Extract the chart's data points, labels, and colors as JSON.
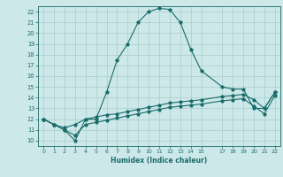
{
  "xlabel": "Humidex (Indice chaleur)",
  "bg_color": "#cce8e8",
  "grid_color": "#aacccc",
  "line_color": "#1a6b6b",
  "xlim": [
    -0.5,
    22.5
  ],
  "ylim": [
    9.5,
    22.5
  ],
  "xticks": [
    0,
    1,
    2,
    3,
    4,
    5,
    6,
    7,
    8,
    9,
    10,
    11,
    12,
    13,
    14,
    15,
    17,
    18,
    19,
    20,
    21,
    22
  ],
  "yticks": [
    10,
    11,
    12,
    13,
    14,
    15,
    16,
    17,
    18,
    19,
    20,
    21,
    22
  ],
  "series1_x": [
    0,
    1,
    2,
    3,
    4,
    5,
    6,
    7,
    8,
    9,
    10,
    11,
    12,
    13,
    14,
    15,
    17,
    18,
    19,
    20,
    21,
    22
  ],
  "series1_y": [
    12.0,
    11.5,
    11.0,
    10.0,
    12.0,
    12.0,
    14.5,
    17.5,
    19.0,
    21.0,
    22.0,
    22.3,
    22.2,
    21.0,
    18.5,
    16.5,
    15.0,
    14.8,
    14.8,
    13.0,
    13.0,
    14.5
  ],
  "series2_x": [
    0,
    1,
    2,
    3,
    4,
    5,
    6,
    7,
    8,
    9,
    10,
    11,
    12,
    13,
    14,
    15,
    17,
    18,
    19,
    20,
    21,
    22
  ],
  "series2_y": [
    12.0,
    11.5,
    11.2,
    11.5,
    12.0,
    12.2,
    12.4,
    12.5,
    12.7,
    12.9,
    13.1,
    13.3,
    13.5,
    13.6,
    13.7,
    13.8,
    14.1,
    14.2,
    14.3,
    13.8,
    13.0,
    14.5
  ],
  "series3_x": [
    0,
    1,
    2,
    3,
    4,
    5,
    6,
    7,
    8,
    9,
    10,
    11,
    12,
    13,
    14,
    15,
    17,
    18,
    19,
    20,
    21,
    22
  ],
  "series3_y": [
    12.0,
    11.5,
    11.0,
    10.5,
    11.5,
    11.7,
    11.9,
    12.1,
    12.3,
    12.5,
    12.7,
    12.9,
    13.1,
    13.2,
    13.3,
    13.4,
    13.7,
    13.8,
    13.9,
    13.2,
    12.5,
    14.2
  ]
}
